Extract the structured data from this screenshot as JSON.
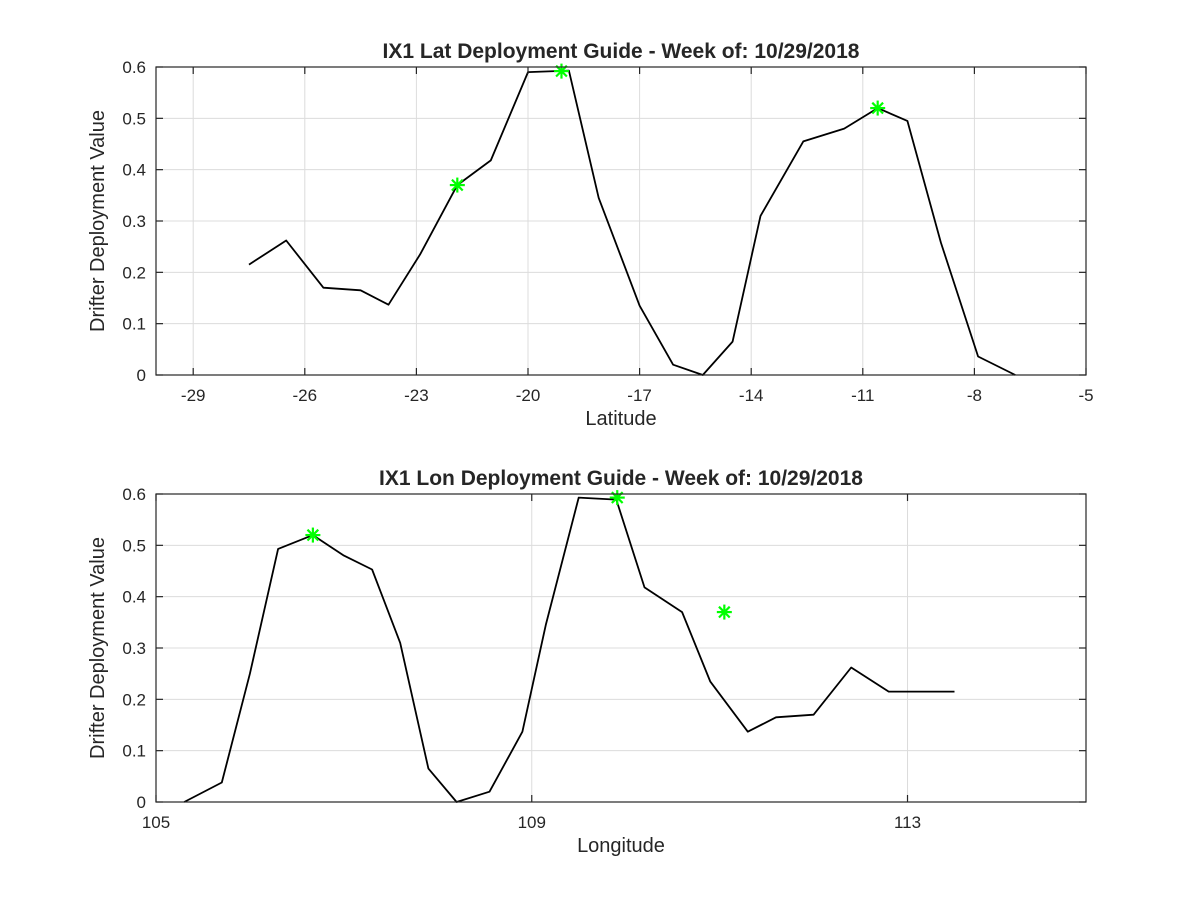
{
  "chart_data": [
    {
      "type": "line",
      "title": "IX1 Lat Deployment Guide - Week of: 10/29/2018",
      "xlabel": "Latitude",
      "ylabel": "Drifter Deployment Value",
      "xlim": [
        -30,
        -5
      ],
      "ylim": [
        0,
        0.6
      ],
      "xticks": [
        -29,
        -26,
        -23,
        -20,
        -17,
        -14,
        -11,
        -8,
        -5
      ],
      "yticks": [
        0,
        0.1,
        0.2,
        0.3,
        0.4,
        0.5,
        0.6
      ],
      "grid": true,
      "series": [
        {
          "color": "#000000",
          "x": [
            -27.5,
            -26.5,
            -25.5,
            -24.5,
            -23.75,
            -22.9,
            -21.9,
            -21.0,
            -20.0,
            -18.9,
            -18.1,
            -17.0,
            -16.1,
            -15.3,
            -14.5,
            -13.75,
            -12.6,
            -11.5,
            -10.6,
            -9.8,
            -8.9,
            -7.9,
            -6.9
          ],
          "y": [
            0.215,
            0.262,
            0.17,
            0.165,
            0.137,
            0.235,
            0.37,
            0.418,
            0.59,
            0.593,
            0.345,
            0.135,
            0.02,
            0.0,
            0.065,
            0.31,
            0.455,
            0.48,
            0.52,
            0.495,
            0.258,
            0.036,
            0.0
          ]
        }
      ],
      "markers": {
        "color": "#00ff00",
        "symbol": "asterisk",
        "x": [
          -21.9,
          -19.1,
          -10.6
        ],
        "y": [
          0.37,
          0.592,
          0.52
        ]
      }
    },
    {
      "type": "line",
      "title": "IX1 Lon Deployment Guide - Week of: 10/29/2018",
      "xlabel": "Longitude",
      "ylabel": "Drifter Deployment Value",
      "xlim": [
        105,
        114.9
      ],
      "ylim": [
        0,
        0.6
      ],
      "xticks": [
        105,
        109,
        113
      ],
      "yticks": [
        0,
        0.1,
        0.2,
        0.3,
        0.4,
        0.5,
        0.6
      ],
      "grid": true,
      "series": [
        {
          "color": "#000000",
          "x": [
            105.3,
            105.7,
            106.0,
            106.3,
            106.67,
            107.0,
            107.3,
            107.6,
            107.9,
            108.2,
            108.55,
            108.9,
            109.15,
            109.5,
            109.9,
            110.2,
            110.6,
            110.9,
            111.3,
            111.6,
            112.0,
            112.4,
            112.8,
            113.05,
            113.5
          ],
          "y": [
            0.0,
            0.038,
            0.25,
            0.493,
            0.52,
            0.48,
            0.453,
            0.31,
            0.065,
            0.0,
            0.02,
            0.137,
            0.345,
            0.593,
            0.589,
            0.418,
            0.37,
            0.235,
            0.137,
            0.165,
            0.17,
            0.262,
            0.215,
            0.215,
            0.215
          ]
        }
      ],
      "markers": {
        "color": "#00ff00",
        "symbol": "asterisk",
        "x": [
          106.67,
          109.91,
          111.05
        ],
        "y": [
          0.52,
          0.593,
          0.37
        ]
      }
    }
  ]
}
